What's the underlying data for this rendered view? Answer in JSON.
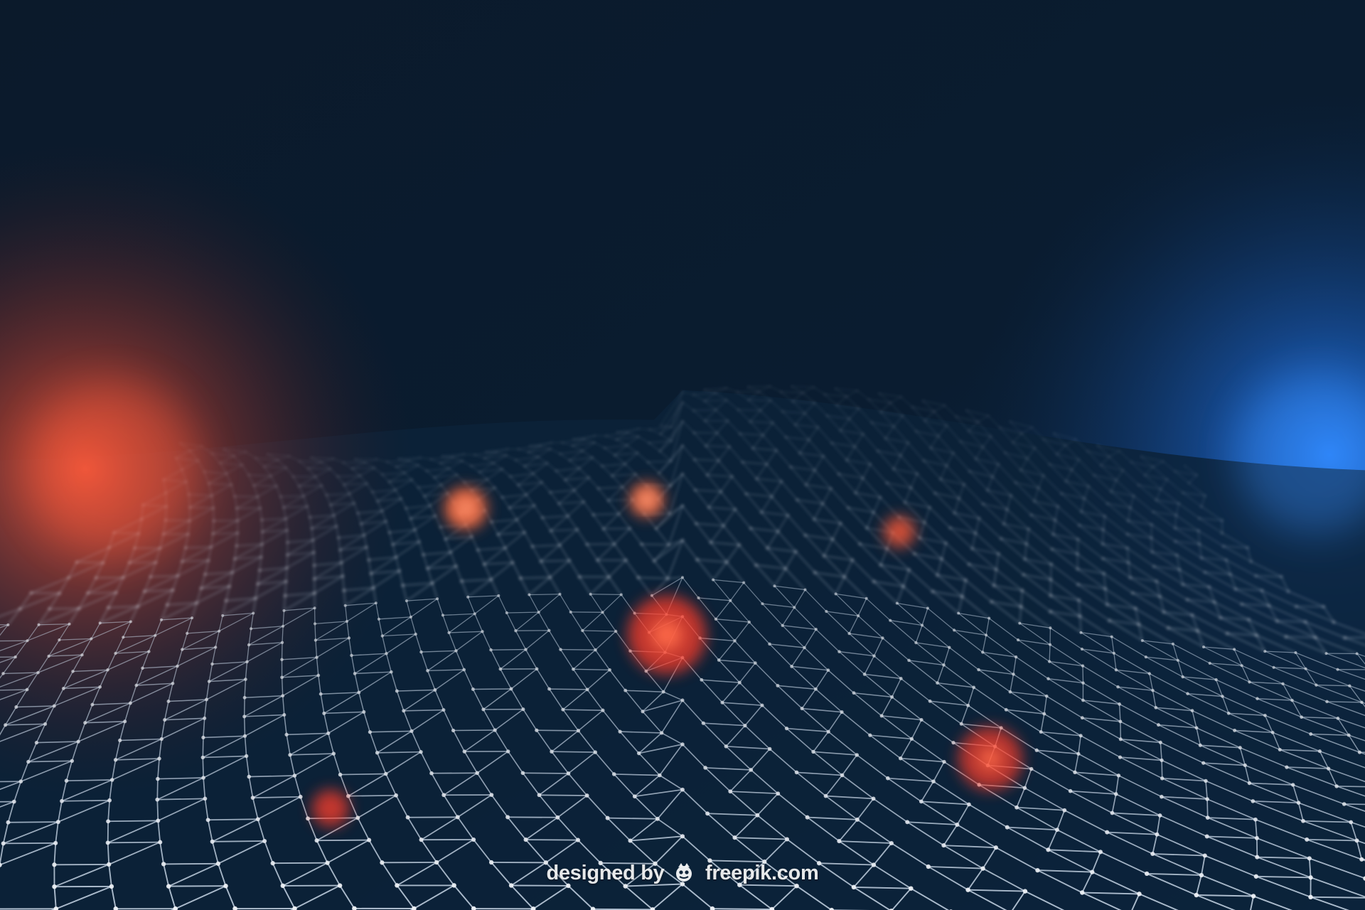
{
  "palette": {
    "background_dark": "#081523",
    "background_mid": "#0d2238",
    "glow_blue": "#2a7fff",
    "glow_red": "#ff4a2e",
    "mesh_line": "#c8d6e6",
    "mesh_node": "#f2f5fa"
  },
  "watermark": {
    "prefix": "designed by",
    "logo_icon": "freepik-logo-icon",
    "suffix": "freepik.com"
  }
}
